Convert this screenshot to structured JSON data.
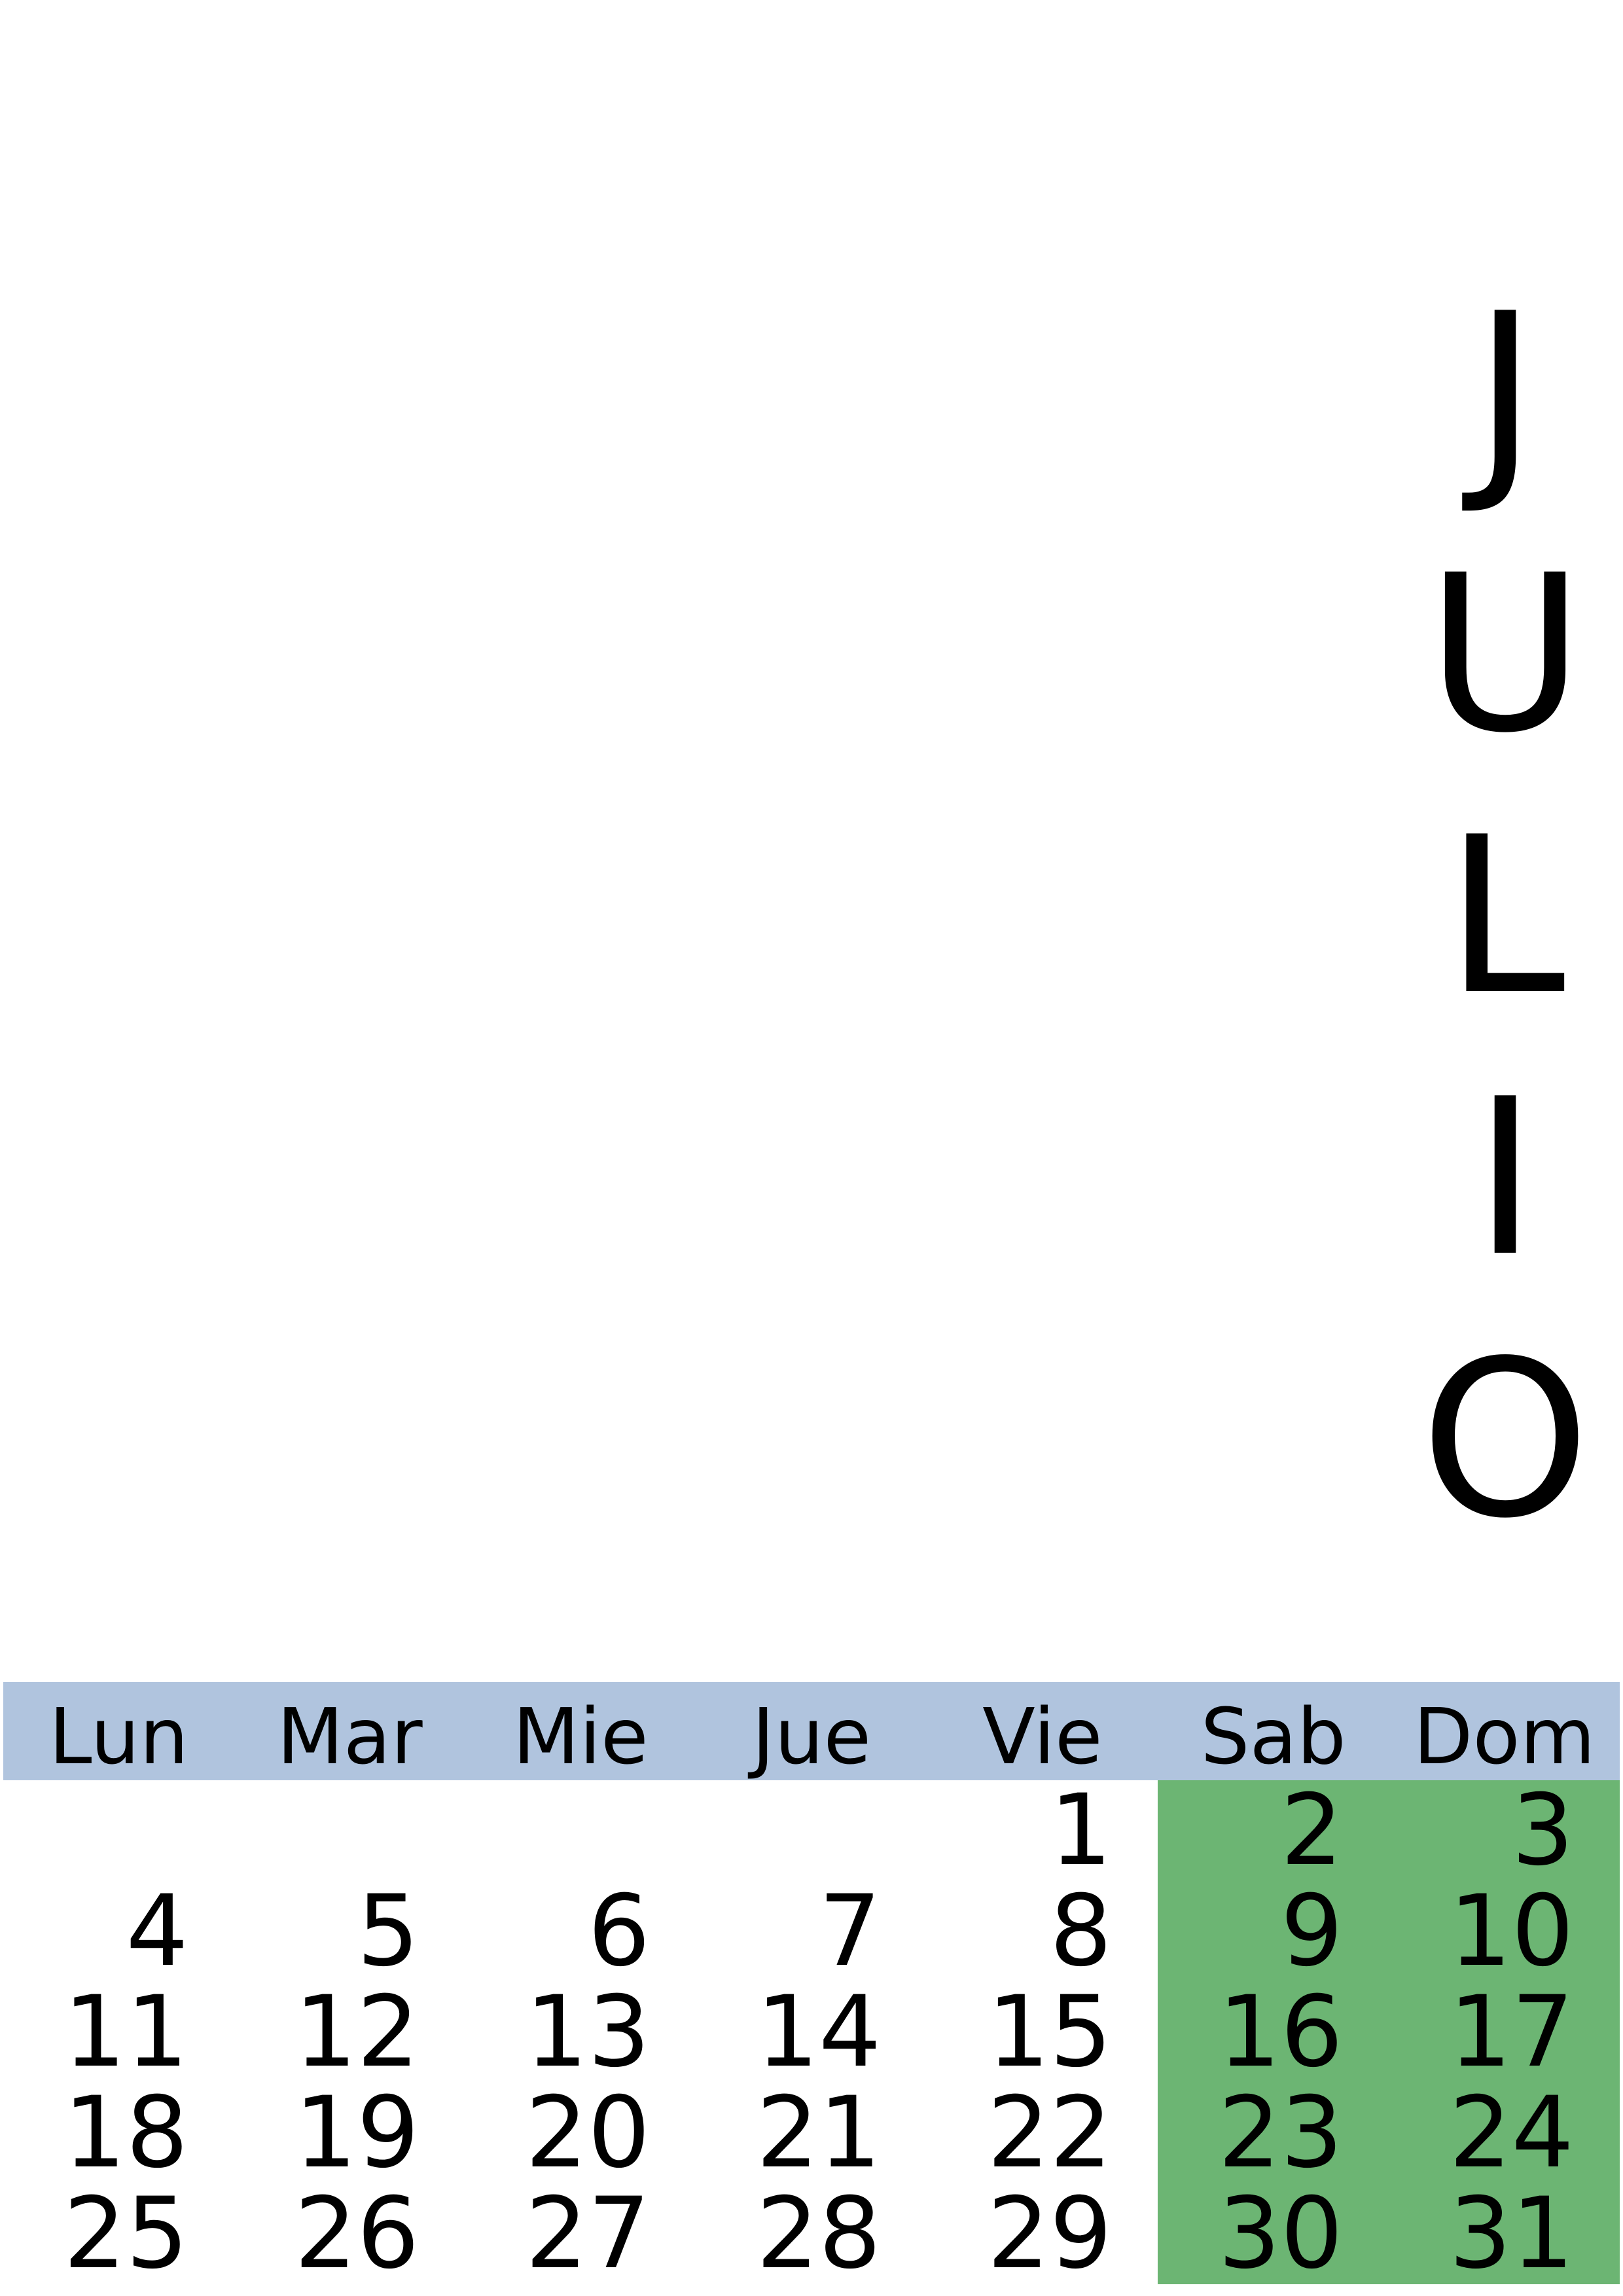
{
  "month": {
    "letters": [
      "J",
      "U",
      "L",
      "I",
      "O"
    ]
  },
  "weekdays": [
    "Lun",
    "Mar",
    "Mie",
    "Jue",
    "Vie",
    "Sab",
    "Dom"
  ],
  "weeks": [
    [
      "",
      "",
      "",
      "",
      "1",
      "2",
      "3"
    ],
    [
      "4",
      "5",
      "6",
      "7",
      "8",
      "9",
      "10"
    ],
    [
      "11",
      "12",
      "13",
      "14",
      "15",
      "16",
      "17"
    ],
    [
      "18",
      "19",
      "20",
      "21",
      "22",
      "23",
      "24"
    ],
    [
      "25",
      "26",
      "27",
      "28",
      "29",
      "30",
      "31"
    ]
  ],
  "colors": {
    "header_background": "#b0c4de",
    "weekend_background": "#6cb573",
    "page_background": "#ffffff",
    "text": "#000000"
  }
}
